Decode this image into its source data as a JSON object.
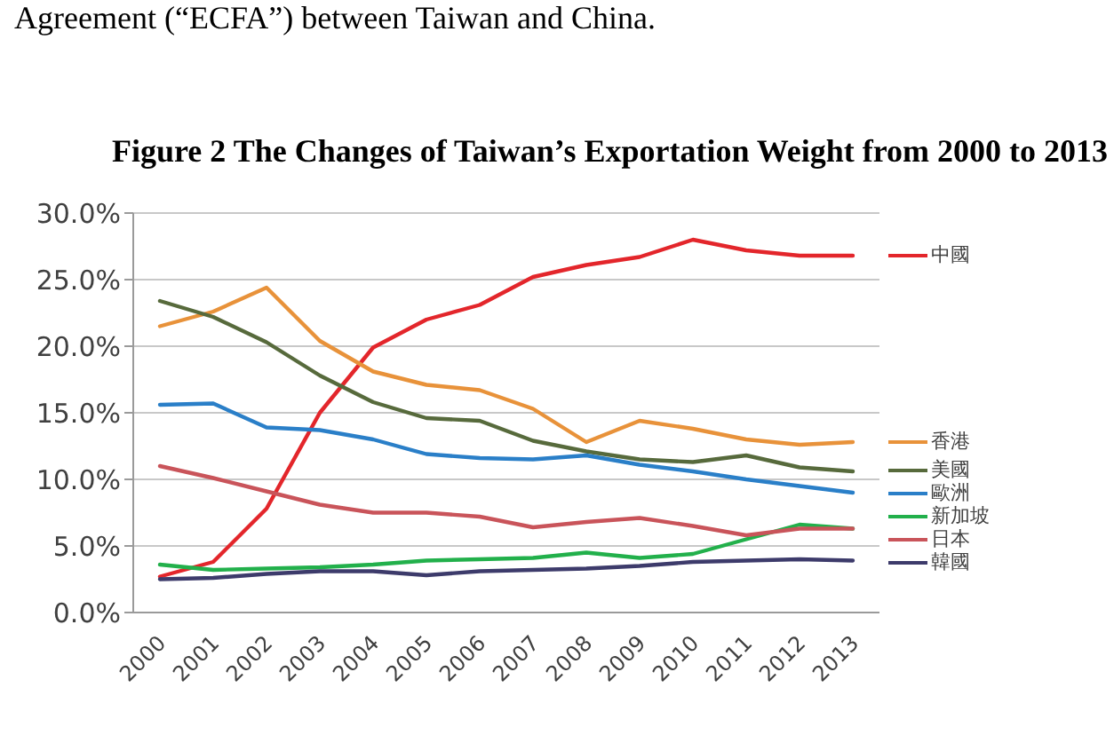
{
  "chart_data": {
    "type": "line",
    "title": "Figure 2 The Changes of Taiwan’s Exportation Weight from 2000 to 2013",
    "annotations": [
      "Agreement (“ECFA”) between Taiwan and China."
    ],
    "categories": [
      "2000",
      "2001",
      "2002",
      "2003",
      "2004",
      "2005",
      "2006",
      "2007",
      "2008",
      "2009",
      "2010",
      "2011",
      "2012",
      "2013"
    ],
    "series": [
      {
        "name": "中國",
        "color": "#e3262b",
        "values": [
          2.7,
          3.8,
          7.8,
          15.0,
          19.9,
          22.0,
          23.1,
          25.2,
          26.1,
          26.7,
          28.0,
          27.2,
          26.8,
          26.8
        ]
      },
      {
        "name": "香港",
        "color": "#e8923a",
        "values": [
          21.5,
          22.6,
          24.4,
          20.4,
          18.1,
          17.1,
          16.7,
          15.3,
          12.8,
          14.4,
          13.8,
          13.0,
          12.6,
          12.8
        ]
      },
      {
        "name": "美國",
        "color": "#576a3c",
        "values": [
          23.4,
          22.2,
          20.3,
          17.8,
          15.8,
          14.6,
          14.4,
          12.9,
          12.1,
          11.5,
          11.3,
          11.8,
          10.9,
          10.6
        ]
      },
      {
        "name": "歐洲",
        "color": "#2a7fc8",
        "values": [
          15.6,
          15.7,
          13.9,
          13.7,
          13.0,
          11.9,
          11.6,
          11.5,
          11.8,
          11.1,
          10.6,
          10.0,
          9.5,
          9.0
        ]
      },
      {
        "name": "新加坡",
        "color": "#22b04b",
        "values": [
          3.6,
          3.2,
          3.3,
          3.4,
          3.6,
          3.9,
          4.0,
          4.1,
          4.5,
          4.1,
          4.4,
          5.5,
          6.6,
          6.3
        ]
      },
      {
        "name": "日本",
        "color": "#c9545a",
        "values": [
          11.0,
          10.1,
          9.1,
          8.1,
          7.5,
          7.5,
          7.2,
          6.4,
          6.8,
          7.1,
          6.5,
          5.8,
          6.3,
          6.3
        ]
      },
      {
        "name": "韓國",
        "color": "#3d3b6b",
        "values": [
          2.5,
          2.6,
          2.9,
          3.1,
          3.1,
          2.8,
          3.1,
          3.2,
          3.3,
          3.5,
          3.8,
          3.9,
          4.0,
          3.9
        ]
      }
    ],
    "ylim": [
      0,
      30
    ],
    "yticks": [
      {
        "value": 0,
        "label": "0.0%"
      },
      {
        "value": 5,
        "label": "5.0%"
      },
      {
        "value": 10,
        "label": "10.0%"
      },
      {
        "value": 15,
        "label": "15.0%"
      },
      {
        "value": 20,
        "label": "20.0%"
      },
      {
        "value": 25,
        "label": "25.0%"
      },
      {
        "value": 30,
        "label": "30.0%"
      }
    ],
    "grid": "y",
    "legend": "right",
    "marker": "none",
    "line_style": "solid"
  }
}
